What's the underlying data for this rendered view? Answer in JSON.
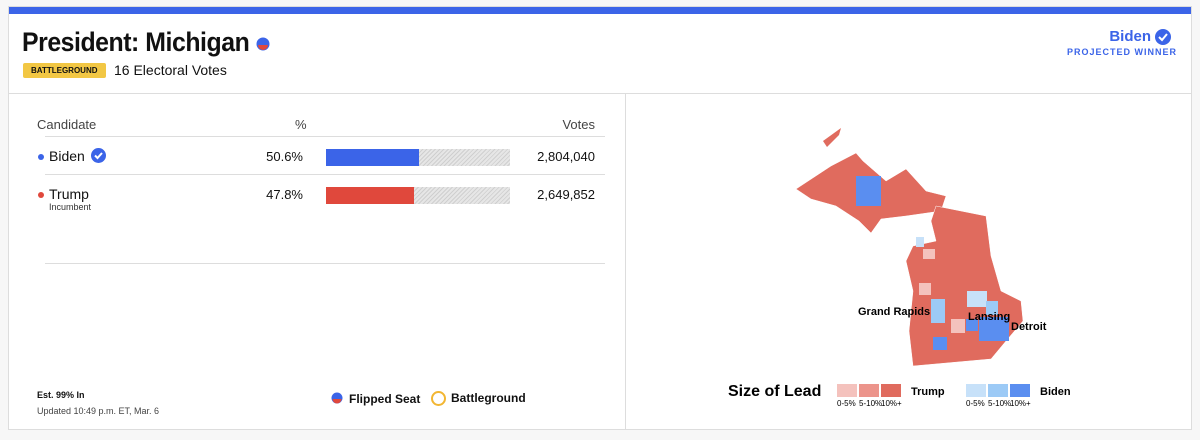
{
  "header": {
    "title": "President: Michigan",
    "badge": "BATTLEGROUND",
    "electoral_votes": "16 Electoral Votes",
    "winner": "Biden",
    "winner_status": "PROJECTED WINNER"
  },
  "table": {
    "columns": [
      "Candidate",
      "%",
      "Votes"
    ],
    "rows": [
      {
        "name": "Biden",
        "color": "#3b64e8",
        "pct": {
          "value": 50.6,
          "label": "50.6%"
        },
        "votes": "2,804,040"
      },
      {
        "name": "Trump",
        "note": "Incumbent",
        "color": "#e0483c",
        "pct": {
          "value": 47.8,
          "label": "47.8%"
        },
        "votes": "2,649,852"
      }
    ]
  },
  "footer": {
    "estimate": "Est. 99% In",
    "updated": "Updated 10:49 p.m. ET, Mar. 6"
  },
  "legend": {
    "flipped": "Flipped Seat",
    "battleground": "Battleground"
  },
  "map": {
    "cities": [
      "Grand Rapids",
      "Lansing",
      "Detroit"
    ],
    "lead_legend": {
      "title": "Size of Lead",
      "bins": [
        "0-5%",
        "5-10%",
        "10%+"
      ],
      "groups": [
        {
          "name": "Trump",
          "colors": [
            "#f4c2bd",
            "#ec948b",
            "#e06b5e"
          ]
        },
        {
          "name": "Biden",
          "colors": [
            "#c7e1f9",
            "#9ccaf6",
            "#5a8ef0"
          ]
        }
      ]
    }
  }
}
